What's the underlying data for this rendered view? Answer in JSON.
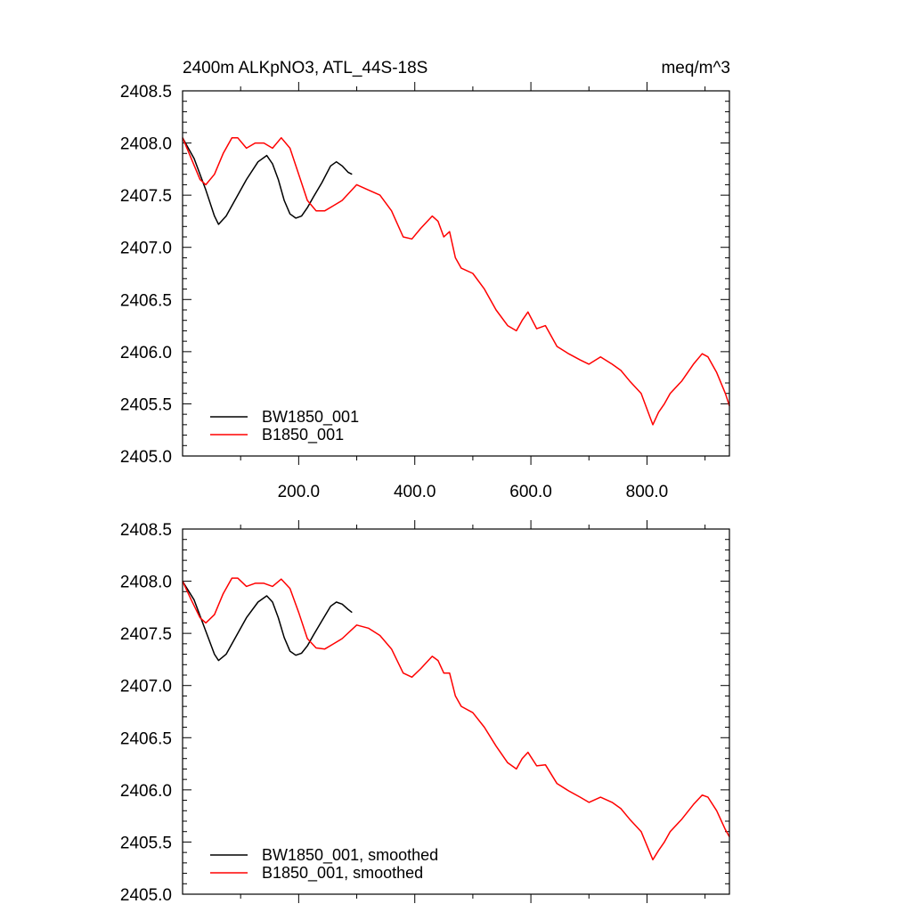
{
  "chart_data": [
    {
      "type": "line",
      "title": "2400m ALKpNO3, ATL_44S-18S",
      "units": "meq/m^3",
      "xlabel": "",
      "ylabel": "",
      "xlim": [
        0,
        942
      ],
      "ylim": [
        2405.0,
        2408.5
      ],
      "x_ticks": [
        200,
        400,
        600,
        800
      ],
      "x_tick_labels": [
        "200.0",
        "400.0",
        "600.0",
        "800.0"
      ],
      "y_ticks": [
        2405.0,
        2405.5,
        2406.0,
        2406.5,
        2407.0,
        2407.5,
        2408.0,
        2408.5
      ],
      "y_tick_labels": [
        "2405.0",
        "2405.5",
        "2406.0",
        "2406.5",
        "2407.0",
        "2407.5",
        "2408.0",
        "2408.5"
      ],
      "grid": false,
      "legend_position": "bottom-left",
      "series": [
        {
          "name": "BW1850_001",
          "color": "#000000",
          "x": [
            0,
            20,
            40,
            55,
            62,
            75,
            90,
            110,
            130,
            145,
            155,
            165,
            175,
            185,
            195,
            205,
            215,
            225,
            240,
            255,
            265,
            275,
            285,
            292
          ],
          "y": [
            2408.05,
            2407.85,
            2407.55,
            2407.3,
            2407.22,
            2407.3,
            2407.45,
            2407.65,
            2407.82,
            2407.88,
            2407.8,
            2407.65,
            2407.45,
            2407.32,
            2407.28,
            2407.3,
            2407.38,
            2407.48,
            2407.62,
            2407.78,
            2407.82,
            2407.78,
            2407.72,
            2407.7
          ]
        },
        {
          "name": "B1850_001",
          "color": "#ff0000",
          "x": [
            0,
            15,
            30,
            40,
            55,
            70,
            85,
            95,
            110,
            125,
            140,
            155,
            170,
            185,
            200,
            215,
            230,
            245,
            260,
            275,
            300,
            320,
            340,
            360,
            380,
            395,
            410,
            430,
            440,
            450,
            460,
            470,
            480,
            500,
            520,
            540,
            560,
            575,
            585,
            595,
            610,
            625,
            645,
            665,
            685,
            700,
            720,
            740,
            755,
            770,
            790,
            810,
            820,
            830,
            840,
            860,
            880,
            895,
            905,
            920,
            935,
            942
          ],
          "y": [
            2408.05,
            2407.85,
            2407.65,
            2407.6,
            2407.7,
            2407.9,
            2408.05,
            2408.05,
            2407.95,
            2408.0,
            2408.0,
            2407.95,
            2408.05,
            2407.95,
            2407.7,
            2407.45,
            2407.35,
            2407.35,
            2407.4,
            2407.45,
            2407.6,
            2407.55,
            2407.5,
            2407.35,
            2407.1,
            2407.08,
            2407.18,
            2407.3,
            2407.25,
            2407.1,
            2407.15,
            2406.9,
            2406.8,
            2406.75,
            2406.6,
            2406.4,
            2406.25,
            2406.2,
            2406.3,
            2406.38,
            2406.22,
            2406.25,
            2406.05,
            2405.98,
            2405.92,
            2405.88,
            2405.95,
            2405.88,
            2405.82,
            2405.72,
            2405.6,
            2405.3,
            2405.42,
            2405.5,
            2405.6,
            2405.72,
            2405.88,
            2405.98,
            2405.95,
            2405.8,
            2405.6,
            2405.48
          ]
        }
      ]
    },
    {
      "type": "line",
      "title": "",
      "xlabel": "",
      "ylabel": "",
      "xlim": [
        0,
        942
      ],
      "ylim": [
        2405.0,
        2408.5
      ],
      "x_ticks": [
        200,
        400,
        600,
        800
      ],
      "x_tick_labels": [],
      "y_ticks": [
        2405.0,
        2405.5,
        2406.0,
        2406.5,
        2407.0,
        2407.5,
        2408.0,
        2408.5
      ],
      "y_tick_labels": [
        "2405.0",
        "2405.5",
        "2406.0",
        "2406.5",
        "2407.0",
        "2407.5",
        "2408.0",
        "2408.5"
      ],
      "grid": false,
      "legend_position": "bottom-left",
      "series": [
        {
          "name": "BW1850_001, smoothed",
          "color": "#000000",
          "x": [
            0,
            20,
            40,
            55,
            62,
            75,
            90,
            110,
            130,
            145,
            155,
            165,
            175,
            185,
            195,
            205,
            215,
            225,
            240,
            255,
            265,
            275,
            285,
            292
          ],
          "y": [
            2408.0,
            2407.82,
            2407.52,
            2407.3,
            2407.24,
            2407.3,
            2407.45,
            2407.65,
            2407.8,
            2407.86,
            2407.8,
            2407.65,
            2407.46,
            2407.33,
            2407.29,
            2407.31,
            2407.38,
            2407.48,
            2407.62,
            2407.76,
            2407.8,
            2407.78,
            2407.73,
            2407.7
          ]
        },
        {
          "name": "B1850_001, smoothed",
          "color": "#ff0000",
          "x": [
            0,
            15,
            30,
            40,
            55,
            70,
            85,
            95,
            110,
            125,
            140,
            155,
            170,
            185,
            200,
            215,
            230,
            245,
            260,
            275,
            300,
            320,
            340,
            360,
            380,
            395,
            410,
            430,
            440,
            450,
            460,
            470,
            480,
            500,
            520,
            540,
            560,
            575,
            585,
            595,
            610,
            625,
            645,
            665,
            685,
            700,
            720,
            740,
            755,
            770,
            790,
            810,
            820,
            830,
            840,
            860,
            880,
            895,
            905,
            920,
            935,
            942
          ],
          "y": [
            2408.0,
            2407.82,
            2407.65,
            2407.6,
            2407.68,
            2407.88,
            2408.03,
            2408.03,
            2407.95,
            2407.98,
            2407.98,
            2407.95,
            2408.02,
            2407.93,
            2407.7,
            2407.45,
            2407.36,
            2407.35,
            2407.4,
            2407.45,
            2407.58,
            2407.55,
            2407.48,
            2407.35,
            2407.12,
            2407.08,
            2407.16,
            2407.28,
            2407.24,
            2407.12,
            2407.12,
            2406.9,
            2406.8,
            2406.74,
            2406.6,
            2406.42,
            2406.26,
            2406.2,
            2406.3,
            2406.36,
            2406.23,
            2406.24,
            2406.06,
            2405.99,
            2405.93,
            2405.88,
            2405.93,
            2405.88,
            2405.82,
            2405.72,
            2405.6,
            2405.33,
            2405.42,
            2405.5,
            2405.6,
            2405.72,
            2405.86,
            2405.95,
            2405.93,
            2405.8,
            2405.62,
            2405.55
          ]
        }
      ]
    }
  ]
}
